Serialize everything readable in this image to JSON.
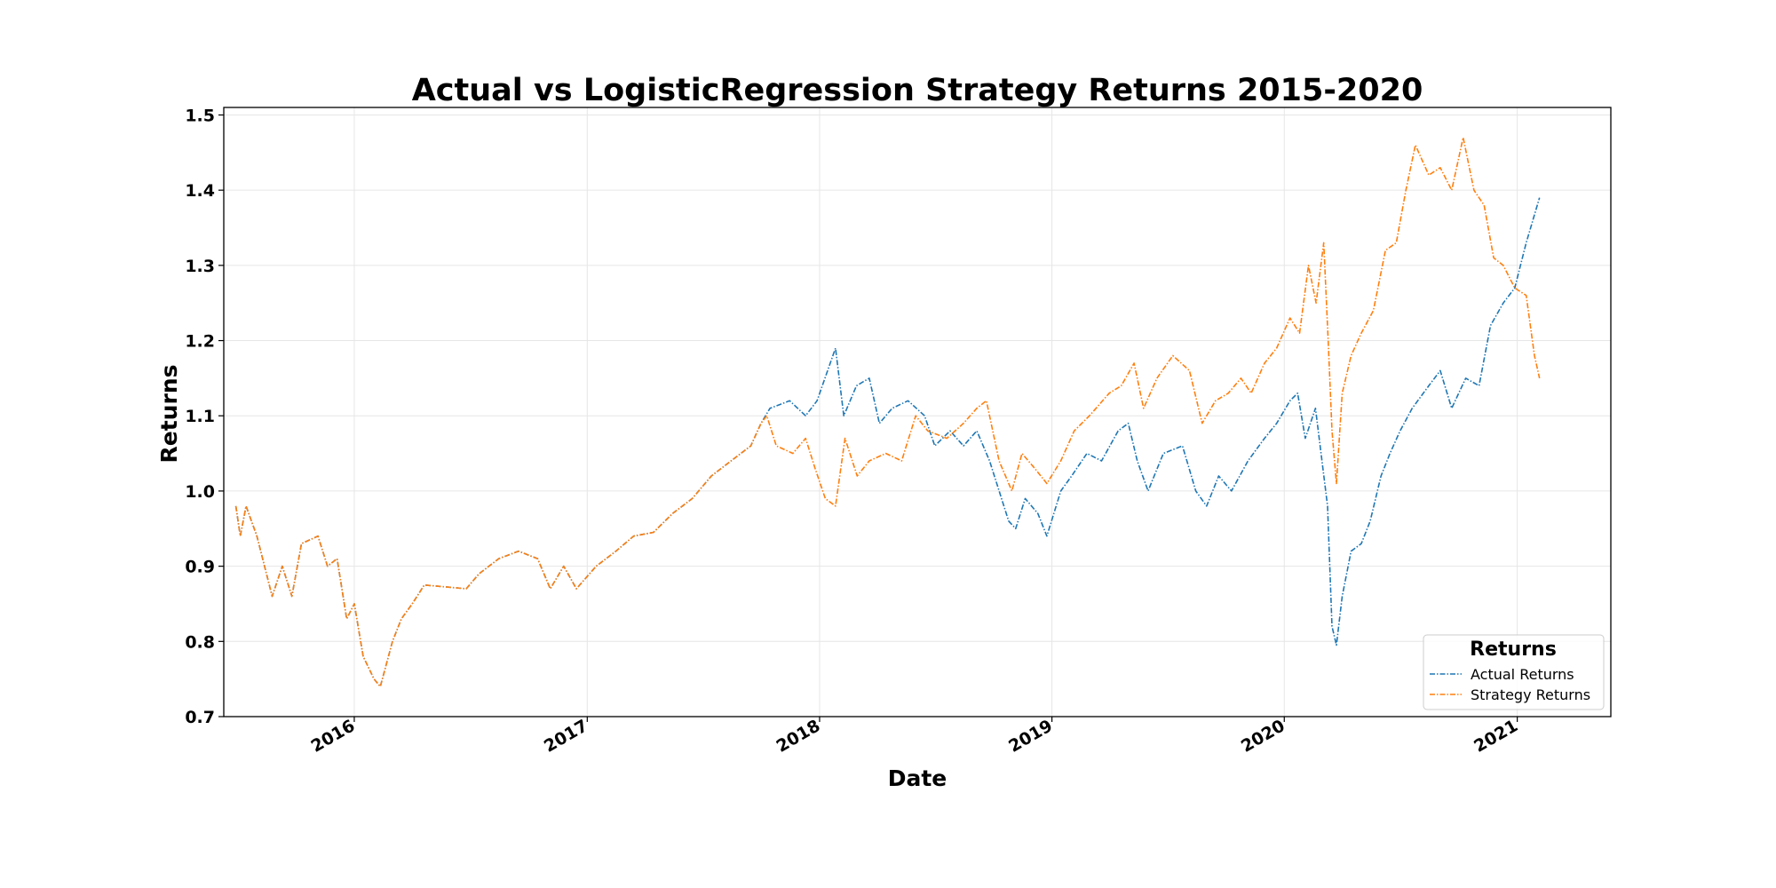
{
  "chart_data": {
    "type": "line",
    "title": "Actual vs LogisticRegression Strategy Returns 2015-2020",
    "xlabel": "Date",
    "ylabel": "Returns",
    "xlim": [
      "2015-06-10",
      "2021-05-28"
    ],
    "ylim": [
      0.7,
      1.51
    ],
    "x_ticks": [
      "2016",
      "2017",
      "2018",
      "2019",
      "2020",
      "2021"
    ],
    "y_ticks": [
      "0.7",
      "0.8",
      "0.9",
      "1.0",
      "1.1",
      "1.2",
      "1.3",
      "1.4",
      "1.5"
    ],
    "grid": true,
    "legend": {
      "title": "Returns",
      "position": "lower right"
    },
    "series": [
      {
        "name": "Actual Returns",
        "color": "#1f77b4",
        "points": [
          [
            "2015-06-29",
            0.98
          ],
          [
            "2015-07-06",
            0.94
          ],
          [
            "2015-07-15",
            0.98
          ],
          [
            "2015-08-01",
            0.94
          ],
          [
            "2015-08-25",
            0.86
          ],
          [
            "2015-09-10",
            0.9
          ],
          [
            "2015-09-25",
            0.86
          ],
          [
            "2015-10-10",
            0.93
          ],
          [
            "2015-11-05",
            0.94
          ],
          [
            "2015-11-20",
            0.9
          ],
          [
            "2015-12-05",
            0.91
          ],
          [
            "2015-12-20",
            0.83
          ],
          [
            "2016-01-01",
            0.85
          ],
          [
            "2016-01-15",
            0.78
          ],
          [
            "2016-02-01",
            0.75
          ],
          [
            "2016-02-11",
            0.74
          ],
          [
            "2016-03-01",
            0.8
          ],
          [
            "2016-03-15",
            0.83
          ],
          [
            "2016-04-01",
            0.85
          ],
          [
            "2016-04-20",
            0.875
          ],
          [
            "2016-06-25",
            0.87
          ],
          [
            "2016-07-15",
            0.89
          ],
          [
            "2016-08-15",
            0.91
          ],
          [
            "2016-09-15",
            0.92
          ],
          [
            "2016-10-15",
            0.91
          ],
          [
            "2016-11-04",
            0.87
          ],
          [
            "2016-11-25",
            0.9
          ],
          [
            "2016-12-15",
            0.87
          ],
          [
            "2017-01-15",
            0.9
          ],
          [
            "2017-02-15",
            0.92
          ],
          [
            "2017-03-15",
            0.94
          ],
          [
            "2017-04-15",
            0.945
          ],
          [
            "2017-05-15",
            0.97
          ],
          [
            "2017-06-15",
            0.99
          ],
          [
            "2017-07-15",
            1.02
          ],
          [
            "2017-08-15",
            1.04
          ],
          [
            "2017-09-15",
            1.06
          ],
          [
            "2017-10-01",
            1.09
          ],
          [
            "2017-10-15",
            1.11
          ],
          [
            "2017-11-15",
            1.12
          ],
          [
            "2017-12-10",
            1.1
          ],
          [
            "2017-12-28",
            1.12
          ],
          [
            "2018-01-26",
            1.19
          ],
          [
            "2018-02-08",
            1.1
          ],
          [
            "2018-02-28",
            1.14
          ],
          [
            "2018-03-20",
            1.15
          ],
          [
            "2018-04-05",
            1.09
          ],
          [
            "2018-04-25",
            1.11
          ],
          [
            "2018-05-20",
            1.12
          ],
          [
            "2018-06-15",
            1.1
          ],
          [
            "2018-07-01",
            1.06
          ],
          [
            "2018-07-25",
            1.08
          ],
          [
            "2018-08-15",
            1.06
          ],
          [
            "2018-09-05",
            1.08
          ],
          [
            "2018-09-25",
            1.04
          ],
          [
            "2018-10-25",
            0.96
          ],
          [
            "2018-11-05",
            0.95
          ],
          [
            "2018-11-20",
            0.99
          ],
          [
            "2018-12-10",
            0.97
          ],
          [
            "2018-12-24",
            0.94
          ],
          [
            "2019-01-15",
            1.0
          ],
          [
            "2019-02-01",
            1.02
          ],
          [
            "2019-02-25",
            1.05
          ],
          [
            "2019-03-20",
            1.04
          ],
          [
            "2019-04-15",
            1.08
          ],
          [
            "2019-05-01",
            1.09
          ],
          [
            "2019-05-15",
            1.04
          ],
          [
            "2019-06-01",
            1.0
          ],
          [
            "2019-06-25",
            1.05
          ],
          [
            "2019-07-25",
            1.06
          ],
          [
            "2019-08-15",
            1.0
          ],
          [
            "2019-09-01",
            0.98
          ],
          [
            "2019-09-20",
            1.02
          ],
          [
            "2019-10-10",
            1.0
          ],
          [
            "2019-11-05",
            1.04
          ],
          [
            "2019-12-01",
            1.07
          ],
          [
            "2019-12-20",
            1.09
          ],
          [
            "2020-01-10",
            1.12
          ],
          [
            "2020-01-22",
            1.13
          ],
          [
            "2020-02-03",
            1.07
          ],
          [
            "2020-02-19",
            1.11
          ],
          [
            "2020-03-09",
            0.98
          ],
          [
            "2020-03-16",
            0.82
          ],
          [
            "2020-03-23",
            0.795
          ],
          [
            "2020-04-01",
            0.86
          ],
          [
            "2020-04-15",
            0.92
          ],
          [
            "2020-05-01",
            0.93
          ],
          [
            "2020-05-15",
            0.96
          ],
          [
            "2020-06-01",
            1.02
          ],
          [
            "2020-06-15",
            1.05
          ],
          [
            "2020-07-01",
            1.08
          ],
          [
            "2020-07-20",
            1.11
          ],
          [
            "2020-08-15",
            1.14
          ],
          [
            "2020-09-02",
            1.16
          ],
          [
            "2020-09-20",
            1.11
          ],
          [
            "2020-10-12",
            1.15
          ],
          [
            "2020-11-02",
            1.14
          ],
          [
            "2020-11-20",
            1.22
          ],
          [
            "2020-12-10",
            1.25
          ],
          [
            "2020-12-28",
            1.27
          ],
          [
            "2021-01-15",
            1.33
          ],
          [
            "2021-02-05",
            1.39
          ]
        ]
      },
      {
        "name": "Strategy Returns",
        "color": "#ff7f0e",
        "points": [
          [
            "2015-06-29",
            0.98
          ],
          [
            "2015-07-06",
            0.94
          ],
          [
            "2015-07-15",
            0.98
          ],
          [
            "2015-08-01",
            0.94
          ],
          [
            "2015-08-25",
            0.86
          ],
          [
            "2015-09-10",
            0.9
          ],
          [
            "2015-09-25",
            0.86
          ],
          [
            "2015-10-10",
            0.93
          ],
          [
            "2015-11-05",
            0.94
          ],
          [
            "2015-11-20",
            0.9
          ],
          [
            "2015-12-05",
            0.91
          ],
          [
            "2015-12-20",
            0.83
          ],
          [
            "2016-01-01",
            0.85
          ],
          [
            "2016-01-15",
            0.78
          ],
          [
            "2016-02-01",
            0.75
          ],
          [
            "2016-02-11",
            0.74
          ],
          [
            "2016-03-01",
            0.8
          ],
          [
            "2016-03-15",
            0.83
          ],
          [
            "2016-04-01",
            0.85
          ],
          [
            "2016-04-20",
            0.875
          ],
          [
            "2016-06-25",
            0.87
          ],
          [
            "2016-07-15",
            0.89
          ],
          [
            "2016-08-15",
            0.91
          ],
          [
            "2016-09-15",
            0.92
          ],
          [
            "2016-10-15",
            0.91
          ],
          [
            "2016-11-04",
            0.87
          ],
          [
            "2016-11-25",
            0.9
          ],
          [
            "2016-12-15",
            0.87
          ],
          [
            "2017-01-15",
            0.9
          ],
          [
            "2017-02-15",
            0.92
          ],
          [
            "2017-03-15",
            0.94
          ],
          [
            "2017-04-15",
            0.945
          ],
          [
            "2017-05-15",
            0.97
          ],
          [
            "2017-06-15",
            0.99
          ],
          [
            "2017-07-15",
            1.02
          ],
          [
            "2017-08-15",
            1.04
          ],
          [
            "2017-09-15",
            1.06
          ],
          [
            "2017-10-01",
            1.09
          ],
          [
            "2017-10-10",
            1.1
          ],
          [
            "2017-10-25",
            1.06
          ],
          [
            "2017-11-20",
            1.05
          ],
          [
            "2017-12-10",
            1.07
          ],
          [
            "2017-12-25",
            1.03
          ],
          [
            "2018-01-10",
            0.99
          ],
          [
            "2018-01-26",
            0.98
          ],
          [
            "2018-02-10",
            1.07
          ],
          [
            "2018-03-01",
            1.02
          ],
          [
            "2018-03-20",
            1.04
          ],
          [
            "2018-04-15",
            1.05
          ],
          [
            "2018-05-10",
            1.04
          ],
          [
            "2018-06-01",
            1.1
          ],
          [
            "2018-06-20",
            1.08
          ],
          [
            "2018-07-20",
            1.07
          ],
          [
            "2018-08-15",
            1.09
          ],
          [
            "2018-09-05",
            1.11
          ],
          [
            "2018-09-20",
            1.12
          ],
          [
            "2018-10-10",
            1.04
          ],
          [
            "2018-10-30",
            1.0
          ],
          [
            "2018-11-15",
            1.05
          ],
          [
            "2018-12-05",
            1.03
          ],
          [
            "2018-12-24",
            1.01
          ],
          [
            "2019-01-15",
            1.04
          ],
          [
            "2019-02-05",
            1.08
          ],
          [
            "2019-03-01",
            1.1
          ],
          [
            "2019-04-01",
            1.13
          ],
          [
            "2019-04-20",
            1.14
          ],
          [
            "2019-05-10",
            1.17
          ],
          [
            "2019-05-25",
            1.11
          ],
          [
            "2019-06-15",
            1.15
          ],
          [
            "2019-07-10",
            1.18
          ],
          [
            "2019-08-05",
            1.16
          ],
          [
            "2019-08-25",
            1.09
          ],
          [
            "2019-09-15",
            1.12
          ],
          [
            "2019-10-05",
            1.13
          ],
          [
            "2019-10-25",
            1.15
          ],
          [
            "2019-11-10",
            1.13
          ],
          [
            "2019-12-01",
            1.17
          ],
          [
            "2019-12-20",
            1.19
          ],
          [
            "2020-01-10",
            1.23
          ],
          [
            "2020-01-25",
            1.21
          ],
          [
            "2020-02-08",
            1.3
          ],
          [
            "2020-02-20",
            1.25
          ],
          [
            "2020-03-03",
            1.33
          ],
          [
            "2020-03-10",
            1.2
          ],
          [
            "2020-03-16",
            1.08
          ],
          [
            "2020-03-23",
            1.01
          ],
          [
            "2020-04-01",
            1.13
          ],
          [
            "2020-04-15",
            1.18
          ],
          [
            "2020-05-01",
            1.21
          ],
          [
            "2020-05-20",
            1.24
          ],
          [
            "2020-06-08",
            1.32
          ],
          [
            "2020-06-25",
            1.33
          ],
          [
            "2020-07-10",
            1.4
          ],
          [
            "2020-07-25",
            1.46
          ],
          [
            "2020-08-15",
            1.42
          ],
          [
            "2020-09-02",
            1.43
          ],
          [
            "2020-09-20",
            1.4
          ],
          [
            "2020-10-08",
            1.47
          ],
          [
            "2020-10-25",
            1.4
          ],
          [
            "2020-11-10",
            1.38
          ],
          [
            "2020-11-25",
            1.31
          ],
          [
            "2020-12-10",
            1.3
          ],
          [
            "2020-12-28",
            1.27
          ],
          [
            "2021-01-15",
            1.26
          ],
          [
            "2021-01-28",
            1.18
          ],
          [
            "2021-02-05",
            1.15
          ]
        ]
      }
    ]
  }
}
